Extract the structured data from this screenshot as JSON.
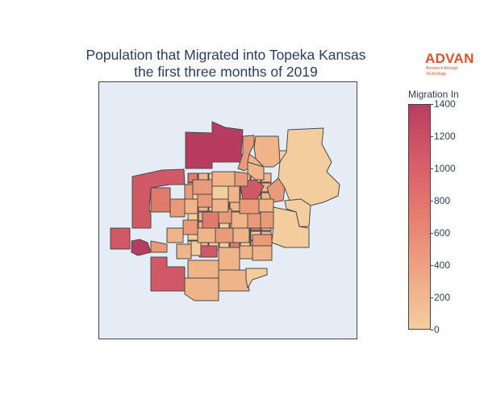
{
  "title_line1": "Population that Migrated into Topeka Kansas",
  "title_line2": "the first three months of 2019",
  "logo": {
    "word": "ADVAN",
    "tagline": "Research through Technology",
    "color": "#e0522a"
  },
  "colorbar": {
    "title": "Migration In",
    "min": 0,
    "max": 1400,
    "ticks": [
      0,
      200,
      400,
      600,
      800,
      1000,
      1200,
      1400
    ],
    "colorscale": [
      "#f3cd9e",
      "#eea785",
      "#e67e6f",
      "#d75b69",
      "#b93d61"
    ]
  },
  "map": {
    "background": "#e5ecf6",
    "border_color": "#444444",
    "region_count": 110
  }
}
